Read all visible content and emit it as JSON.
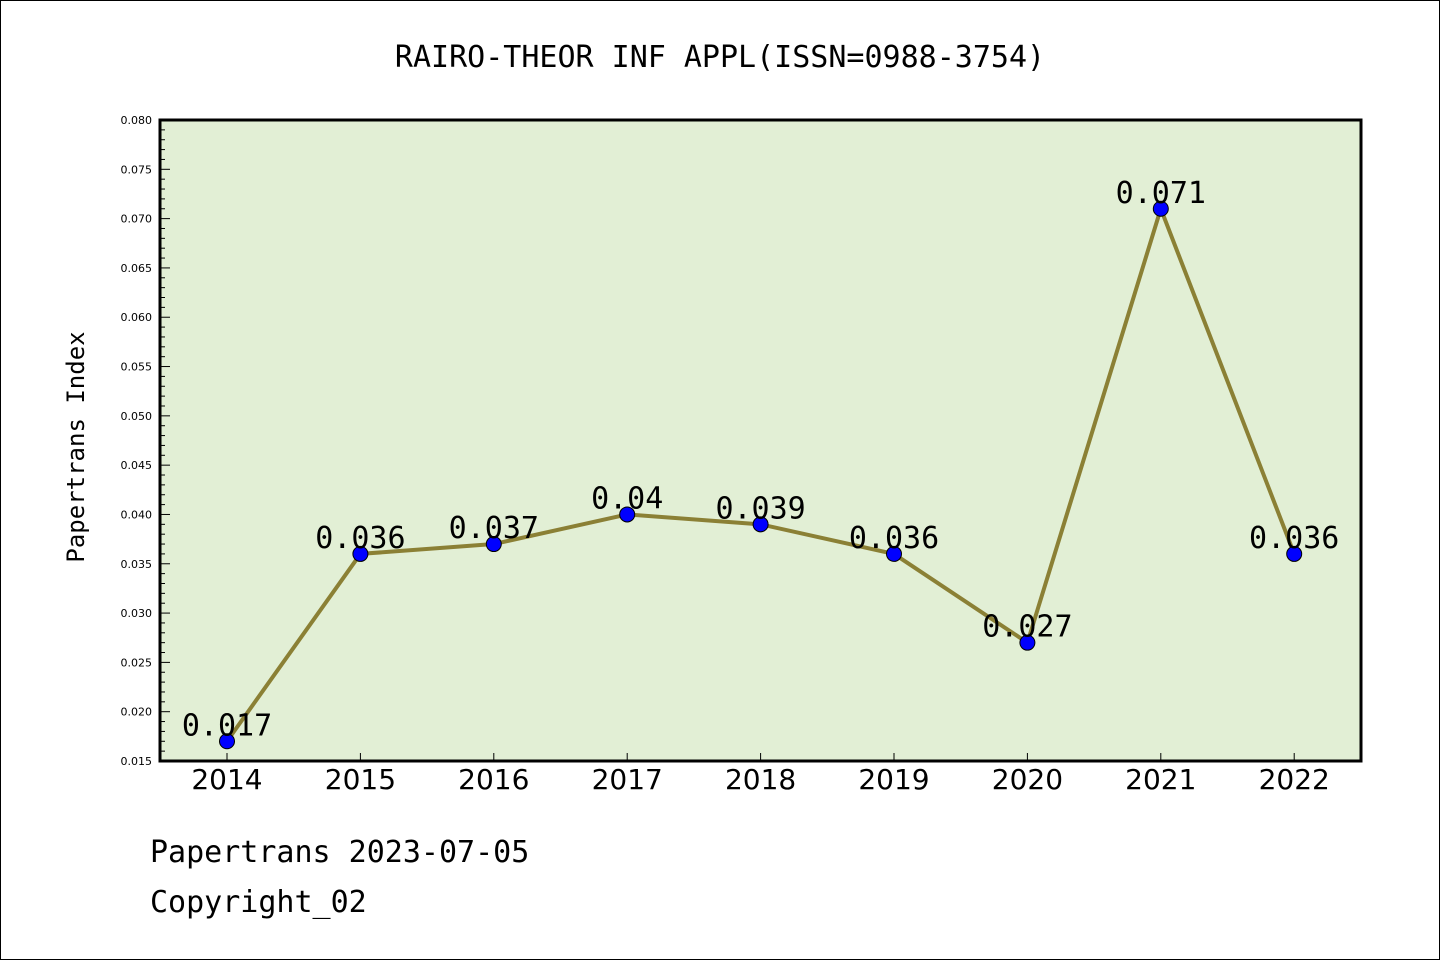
{
  "chart_data": {
    "type": "line",
    "title": "RAIRO-THEOR INF APPL(ISSN=0988-3754)",
    "xlabel": "",
    "ylabel": "Papertrans Index",
    "categories": [
      "2014",
      "2015",
      "2016",
      "2017",
      "2018",
      "2019",
      "2020",
      "2021",
      "2022"
    ],
    "values": [
      0.017,
      0.036,
      0.037,
      0.04,
      0.039,
      0.036,
      0.027,
      0.071,
      0.036
    ],
    "data_labels": [
      "0.017",
      "0.036",
      "0.037",
      "0.04",
      "0.039",
      "0.036",
      "0.027",
      "0.071",
      "0.036"
    ],
    "ylim": [
      0.015,
      0.08
    ],
    "yticks": [
      "0.015",
      "0.020",
      "0.025",
      "0.030",
      "0.035",
      "0.040",
      "0.045",
      "0.050",
      "0.055",
      "0.060",
      "0.065",
      "0.070",
      "0.075",
      "0.080"
    ],
    "grid": false,
    "colors": {
      "plot_background": "#e2efd5",
      "line": "#8b8035",
      "marker": "#0000ff"
    }
  },
  "footer": {
    "line1": "Papertrans 2023-07-05",
    "line2": "Copyright_02"
  }
}
